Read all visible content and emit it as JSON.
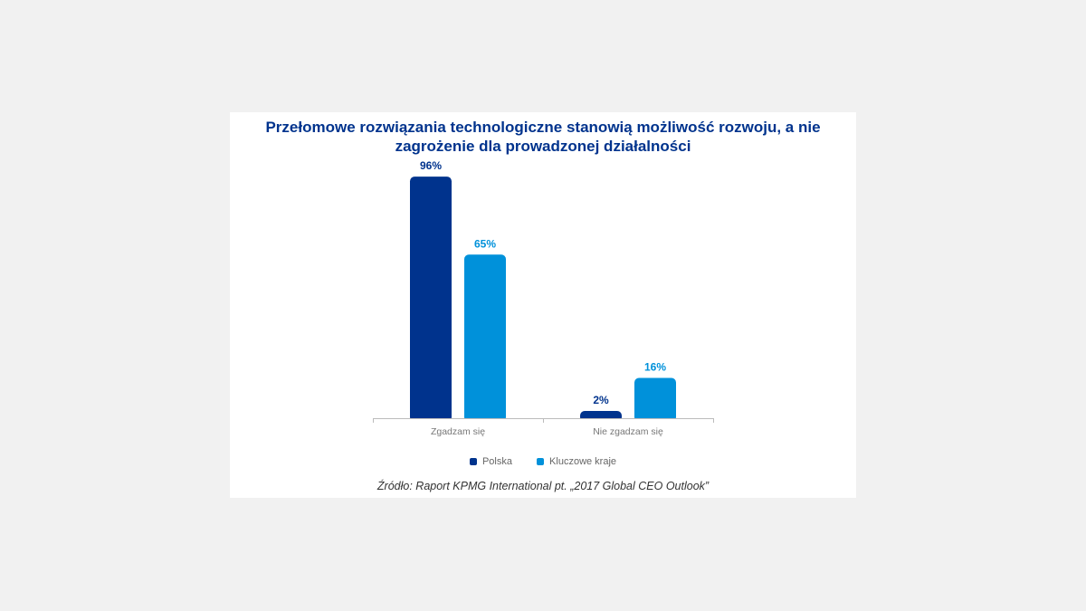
{
  "chart_data": {
    "type": "bar",
    "title_lines": [
      "Przełomowe rozwiązania technologiczne stanowią możliwość rozwoju, a nie",
      "zagrożenie dla prowadzonej działalności"
    ],
    "categories": [
      "Zgadzam się",
      "Nie zgadzam się"
    ],
    "series": [
      {
        "name": "Polska",
        "values": [
          96,
          2
        ],
        "labels": [
          "96%",
          "2%"
        ],
        "color": "#00338d"
      },
      {
        "name": "Kluczowe kraje",
        "values": [
          65,
          16
        ],
        "labels": [
          "65%",
          "16%"
        ],
        "color": "#0091da"
      }
    ],
    "ylim": [
      0,
      100
    ],
    "grid": false,
    "legend_position": "bottom-center",
    "source": "Źródło: Raport KPMG International pt. „2017 Global CEO Outlook”"
  }
}
